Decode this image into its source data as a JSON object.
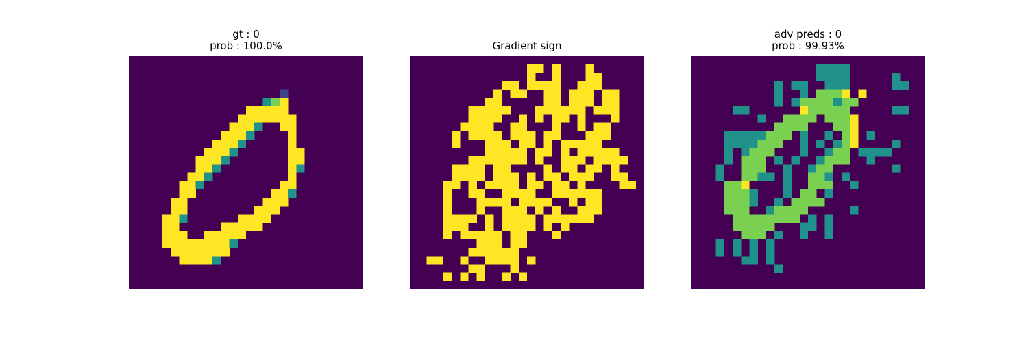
{
  "figure": {
    "panels": [
      {
        "title_lines": [
          "gt : 0",
          "prob : 100.0%"
        ]
      },
      {
        "title_lines": [
          "Gradient sign"
        ]
      },
      {
        "title_lines": [
          "adv preds : 0",
          "prob : 99.93%"
        ]
      }
    ]
  },
  "chart_data": [
    {
      "type": "heatmap",
      "title": "gt : 0\nprob : 100.0%",
      "colormap": "viridis",
      "colors": {
        "background": "#440154",
        "low": "#414487",
        "mid": "#21918c",
        "high": "#7ad151",
        "max": "#fde725"
      },
      "shape": [
        28,
        28
      ],
      "rows": [
        "............................",
        "............................",
        "............................",
        "............................",
        "..................0.........",
        "................132.........",
        "..............22222.........",
        ".............2222222........",
        "............2221..22........",
        "...........2221....2........",
        "..........2221.....2........",
        ".........2221......22.......",
        "........2221.......22.......",
        "........221........21.......",
        ".......221.........2........",
        "......221.........22........",
        "......22.........221........",
        ".....22.........222.........",
        ".....22........222..........",
        "....221......2222...........",
        "....22.....22222............",
        "....222..22222..............",
        "....222222221...............",
        ".....2222222................",
        "......22221.................",
        "............................",
        "............................",
        "............................"
      ],
      "axes": "off"
    },
    {
      "type": "heatmap",
      "title": "Gradient sign",
      "colormap": "viridis",
      "colors": {
        "negative": "#440154",
        "positive": "#fde725"
      },
      "shape": [
        28,
        28
      ],
      "rows": [
        "............................",
        "..............##.#...#......",
        "..............#..#...##.....",
        "...........##.####..###.....",
        "..........#.##..##.###.##...",
        ".........##.....##.###.##...",
        ".......#####...######.###...",
        ".......####..#.#.##.#...#...",
        "......####..##...#..#.##....",
        ".....#.####.###.##...###....",
        ".....#...###.##.#.#####.....",
        ".........#####.##.#.#####...",
        ".......#######.#..###.####..",
        ".....####.##....#.##.##.#...",
        ".....####.###.#.##.###..##..",
        "....##.#.####.##.##.#....##.",
        "....#..##..####..######.....",
        "....#...####.####..#.##.....",
        "....#...#..###.#.#..###.....",
        "....####.#.####.######......",
        "....###..#.####.#.#.........",
        "....#.#####.##...#..........",
        "........###.##..............",
        ".......######...............",
        "..##..#..####.#.............",
        ".......##...#...............",
        "....#.#.#..#.#..............",
        "............................"
      ],
      "axes": "off"
    },
    {
      "type": "heatmap",
      "title": "adv preds : 0\nprob : 99.93%",
      "colormap": "viridis",
      "colors": {
        "background": "#440154",
        "low": "#414487",
        "mid": "#21918c",
        "high": "#7ad151",
        "max": "#fde725"
      },
      "shape": [
        28,
        28
      ],
      "rows": [
        "............................",
        "...............1111.........",
        "...............1111.....1...",
        "..........1.11..111.....11..",
        "..........1..1.3332.2.......",
        "..........1.13333133........",
        ".....11......233333.....11..",
        "........1..3333.3334........",
        "..........3333...334........",
        "....11111333.1..1.34.1......",
        "....1111333..1.1.134....1...",
        "....1.1333...1..133.1111....",
        "....1.333.1.1..1333..1......",
        "...1..333..1..133.......1...",
        "...1..3311.1..331.1.........",
        "....334....1..333..1........",
        "....3331...1.33.1...........",
        "....3331..1.3333............",
        "....333..13333.....1........",
        ".....33333333.1.1...........",
        ".....33333...11.1...........",
        "......333.1..1..1...........",
        "...1.1.1.1..................",
        "...1.1.1.1..................",
        "......11.1..................",
        "..........1.................",
        "............................",
        "............................"
      ],
      "axes": "off"
    }
  ]
}
